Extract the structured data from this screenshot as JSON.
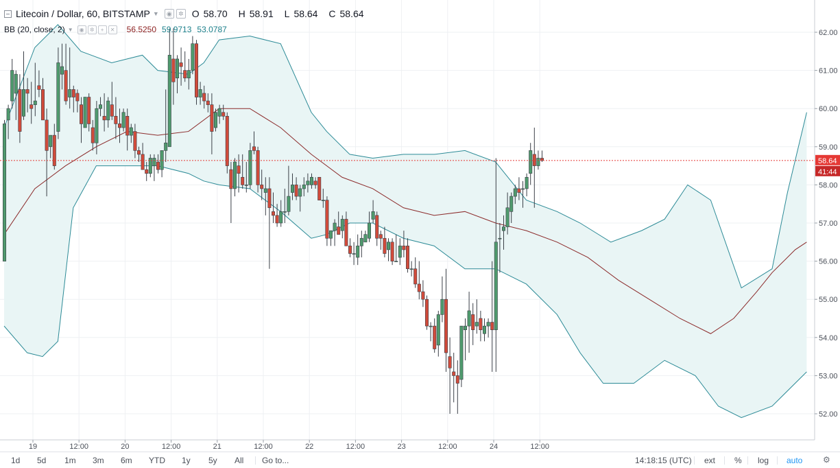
{
  "header": {
    "symbol": "Litecoin / Dollar, 60, BITSTAMP",
    "o_label": "O",
    "o_value": "58.70",
    "h_label": "H",
    "h_value": "58.91",
    "l_label": "L",
    "l_value": "58.64",
    "c_label": "C",
    "c_value": "58.64"
  },
  "indicator": {
    "name": "BB (20, close, 2)",
    "basis": "56.5250",
    "upper": "59.9713",
    "lower": "53.0787"
  },
  "price_axis": {
    "labels": [
      "62.00",
      "61.00",
      "60.00",
      "59.00",
      "58.00",
      "57.00",
      "56.00",
      "55.00",
      "54.00",
      "53.00",
      "52.00"
    ],
    "last_price": "58.64",
    "countdown": "41:44"
  },
  "time_axis": {
    "labels": [
      {
        "text": "19",
        "t": 7.5
      },
      {
        "text": "12:00",
        "t": 19.5
      },
      {
        "text": "20",
        "t": 31.5
      },
      {
        "text": "12:00",
        "t": 43.5
      },
      {
        "text": "21",
        "t": 55.5
      },
      {
        "text": "12:00",
        "t": 67.5
      },
      {
        "text": "22",
        "t": 79.5
      },
      {
        "text": "12:00",
        "t": 91.5
      },
      {
        "text": "23",
        "t": 103.5
      },
      {
        "text": "12:00",
        "t": 115.5
      },
      {
        "text": "24",
        "t": 127.5
      },
      {
        "text": "12:00",
        "t": 139.5
      }
    ]
  },
  "toolbar": {
    "ranges": [
      "1d",
      "5d",
      "1m",
      "3m",
      "6m",
      "YTD",
      "1y",
      "5y",
      "All"
    ],
    "goto": "Go to...",
    "time": "14:18:15 (UTC)",
    "ext": "ext",
    "percent": "%",
    "log": "log",
    "auto": "auto"
  },
  "colors": {
    "up": "#4f9a6d",
    "down": "#d14b3b",
    "band": "#2b8a96",
    "basis": "#8b2a2a",
    "band_fill": "#e9f5f5",
    "last_price_tag": "#e53935",
    "countdown_tag": "#c62828",
    "grid": "#eef0f3"
  },
  "chart_data": {
    "type": "candlestick",
    "ylim": [
      51.6,
      62.3
    ],
    "ohlc": [
      [
        56.0,
        59.7,
        56.0,
        59.6
      ],
      [
        59.7,
        60.1,
        59.2,
        60.0
      ],
      [
        60.2,
        61.3,
        60.0,
        61.0
      ],
      [
        60.4,
        61.0,
        59.7,
        60.9
      ],
      [
        60.5,
        60.9,
        59.1,
        59.4
      ],
      [
        59.8,
        61.5,
        59.7,
        60.5
      ],
      [
        60.5,
        60.8,
        59.9,
        60.4
      ],
      [
        60.1,
        60.7,
        59.6,
        60.0
      ],
      [
        60.1,
        61.2,
        59.8,
        60.2
      ],
      [
        60.6,
        61.0,
        60.3,
        60.5
      ],
      [
        60.5,
        60.8,
        59.7,
        59.7
      ],
      [
        59.7,
        60.0,
        57.7,
        58.9
      ],
      [
        59.0,
        59.3,
        58.7,
        59.3
      ],
      [
        59.3,
        59.6,
        58.4,
        58.5
      ],
      [
        59.4,
        61.6,
        59.2,
        61.2
      ],
      [
        60.9,
        61.7,
        60.5,
        61.1
      ],
      [
        61.0,
        61.7,
        60.1,
        60.2
      ],
      [
        60.3,
        61.6,
        60.0,
        60.5
      ],
      [
        60.5,
        60.6,
        59.9,
        60.3
      ],
      [
        60.4,
        60.5,
        59.9,
        60.2
      ],
      [
        60.1,
        60.3,
        59.1,
        59.6
      ],
      [
        59.5,
        60.3,
        59.5,
        60.3
      ],
      [
        60.3,
        60.4,
        59.4,
        59.6
      ],
      [
        59.5,
        59.7,
        58.9,
        59.1
      ],
      [
        59.1,
        60.2,
        58.8,
        60.0
      ],
      [
        60.0,
        60.3,
        59.8,
        60.1
      ],
      [
        59.8,
        60.4,
        59.4,
        59.7
      ],
      [
        59.7,
        60.3,
        59.5,
        60.2
      ],
      [
        60.1,
        60.7,
        59.7,
        59.8
      ],
      [
        59.8,
        60.3,
        59.2,
        59.6
      ],
      [
        59.6,
        60.0,
        59.1,
        59.5
      ],
      [
        59.5,
        60.0,
        59.4,
        59.9
      ],
      [
        59.8,
        60.0,
        58.9,
        59.3
      ],
      [
        59.3,
        59.6,
        59.1,
        59.5
      ],
      [
        59.4,
        59.6,
        58.7,
        58.9
      ],
      [
        58.9,
        59.0,
        58.6,
        58.8
      ],
      [
        58.8,
        59.1,
        58.4,
        58.4
      ],
      [
        58.4,
        58.6,
        58.1,
        58.3
      ],
      [
        58.3,
        58.8,
        58.2,
        58.7
      ],
      [
        58.5,
        58.8,
        58.1,
        58.7
      ],
      [
        58.6,
        58.8,
        58.3,
        58.4
      ],
      [
        58.4,
        58.9,
        58.2,
        58.9
      ],
      [
        58.9,
        60.5,
        58.6,
        59.1
      ],
      [
        59.0,
        62.1,
        59.0,
        61.4
      ],
      [
        61.3,
        62.1,
        60.1,
        60.7
      ],
      [
        60.8,
        61.4,
        60.4,
        61.3
      ],
      [
        61.2,
        61.6,
        60.6,
        61.1
      ],
      [
        61.0,
        61.5,
        60.7,
        60.8
      ],
      [
        60.8,
        61.3,
        60.5,
        61.0
      ],
      [
        61.0,
        61.9,
        60.9,
        61.7
      ],
      [
        61.7,
        61.8,
        60.1,
        60.3
      ],
      [
        60.3,
        60.7,
        60.1,
        60.5
      ],
      [
        60.4,
        60.6,
        60.0,
        60.2
      ],
      [
        60.2,
        60.4,
        59.9,
        60.1
      ],
      [
        60.1,
        60.4,
        58.8,
        59.4
      ],
      [
        59.5,
        60.0,
        59.4,
        59.9
      ],
      [
        59.8,
        60.1,
        59.6,
        60.0
      ],
      [
        59.9,
        60.1,
        59.7,
        59.8
      ],
      [
        59.8,
        59.9,
        58.3,
        58.5
      ],
      [
        58.4,
        58.6,
        57.0,
        57.9
      ],
      [
        57.9,
        58.7,
        57.7,
        58.6
      ],
      [
        58.5,
        58.8,
        57.8,
        58.3
      ],
      [
        58.2,
        58.8,
        57.9,
        58.0
      ],
      [
        58.0,
        58.6,
        57.8,
        58.0
      ],
      [
        58.0,
        59.1,
        57.9,
        58.9
      ],
      [
        59.0,
        59.4,
        58.8,
        58.9
      ],
      [
        58.9,
        59.0,
        57.8,
        58.0
      ],
      [
        58.0,
        58.4,
        57.6,
        57.9
      ],
      [
        57.8,
        58.2,
        57.2,
        57.9
      ],
      [
        57.9,
        58.2,
        55.8,
        57.4
      ],
      [
        57.3,
        57.8,
        57.0,
        57.2
      ],
      [
        57.2,
        57.5,
        56.9,
        57.0
      ],
      [
        57.0,
        57.6,
        56.9,
        57.3
      ],
      [
        57.3,
        57.9,
        57.0,
        57.3
      ],
      [
        57.3,
        58.5,
        57.2,
        57.7
      ],
      [
        57.8,
        58.3,
        57.6,
        58.0
      ],
      [
        58.0,
        58.2,
        57.6,
        57.7
      ],
      [
        57.7,
        58.0,
        57.3,
        57.9
      ],
      [
        57.9,
        58.2,
        57.7,
        58.0
      ],
      [
        58.0,
        58.3,
        57.8,
        58.1
      ],
      [
        58.0,
        58.3,
        57.9,
        58.2
      ],
      [
        58.1,
        58.2,
        57.9,
        58.0
      ],
      [
        58.2,
        58.2,
        57.6,
        57.6
      ],
      [
        57.6,
        57.9,
        57.4,
        57.6
      ],
      [
        57.6,
        57.7,
        56.4,
        56.6
      ],
      [
        56.6,
        56.8,
        56.4,
        56.8
      ],
      [
        56.8,
        57.1,
        56.4,
        57.0
      ],
      [
        56.9,
        57.3,
        56.7,
        56.7
      ],
      [
        56.8,
        57.2,
        56.6,
        57.1
      ],
      [
        57.1,
        57.3,
        56.5,
        56.4
      ],
      [
        56.4,
        56.6,
        56.1,
        56.2
      ],
      [
        56.2,
        56.5,
        55.9,
        56.2
      ],
      [
        56.1,
        56.7,
        55.9,
        56.4
      ],
      [
        56.4,
        56.8,
        56.1,
        56.6
      ],
      [
        56.5,
        56.8,
        56.5,
        56.7
      ],
      [
        56.6,
        57.3,
        56.5,
        57.0
      ],
      [
        57.1,
        57.6,
        57.0,
        57.3
      ],
      [
        57.2,
        57.3,
        56.4,
        56.6
      ],
      [
        56.7,
        56.8,
        56.3,
        56.6
      ],
      [
        56.6,
        56.9,
        56.1,
        56.2
      ],
      [
        56.3,
        56.6,
        56.0,
        56.5
      ],
      [
        56.5,
        56.6,
        55.9,
        56.0
      ],
      [
        56.0,
        56.7,
        56.0,
        56.0
      ],
      [
        56.1,
        56.6,
        55.9,
        56.4
      ],
      [
        56.4,
        56.8,
        56.1,
        56.3
      ],
      [
        56.4,
        56.6,
        55.7,
        55.8
      ],
      [
        55.8,
        56.0,
        55.6,
        55.8
      ],
      [
        55.8,
        56.1,
        55.3,
        55.4
      ],
      [
        55.4,
        56.0,
        55.0,
        55.2
      ],
      [
        55.2,
        55.5,
        54.8,
        55.0
      ],
      [
        55.0,
        55.1,
        54.2,
        54.3
      ],
      [
        54.3,
        54.4,
        53.9,
        54.3
      ],
      [
        54.3,
        54.5,
        53.6,
        53.7
      ],
      [
        53.8,
        54.7,
        53.5,
        54.6
      ],
      [
        54.6,
        55.6,
        54.4,
        55.0
      ],
      [
        55.0,
        55.8,
        53.1,
        53.6
      ],
      [
        53.5,
        54.0,
        52.0,
        53.2
      ],
      [
        53.1,
        53.6,
        52.3,
        53.0
      ],
      [
        53.0,
        53.4,
        52.0,
        52.8
      ],
      [
        52.9,
        54.3,
        52.7,
        54.3
      ],
      [
        54.2,
        54.5,
        53.4,
        54.3
      ],
      [
        54.3,
        55.2,
        53.6,
        54.7
      ],
      [
        54.6,
        54.9,
        53.8,
        54.2
      ],
      [
        54.3,
        55.0,
        54.1,
        54.4
      ],
      [
        54.5,
        54.7,
        53.9,
        54.2
      ],
      [
        54.1,
        54.5,
        53.9,
        54.3
      ],
      [
        54.3,
        54.5,
        54.0,
        54.4
      ],
      [
        54.4,
        56.0,
        53.1,
        54.2
      ],
      [
        54.2,
        58.7,
        53.1,
        56.5
      ],
      [
        56.6,
        57.0,
        55.7,
        56.6
      ],
      [
        56.8,
        57.2,
        56.3,
        56.9
      ],
      [
        56.9,
        57.8,
        56.7,
        57.4
      ],
      [
        57.3,
        57.8,
        57.0,
        57.7
      ],
      [
        57.7,
        58.0,
        57.5,
        57.9
      ],
      [
        57.9,
        58.2,
        57.6,
        57.8
      ],
      [
        57.9,
        58.1,
        57.4,
        57.9
      ],
      [
        57.9,
        58.3,
        57.7,
        58.2
      ],
      [
        58.3,
        59.1,
        58.0,
        58.9
      ],
      [
        58.8,
        59.5,
        57.4,
        58.5
      ],
      [
        58.5,
        58.9,
        58.4,
        58.7
      ],
      [
        58.7,
        58.9,
        58.6,
        58.64
      ]
    ],
    "bb_basis": [
      [
        0,
        56.7
      ],
      [
        8,
        57.9
      ],
      [
        16,
        58.5
      ],
      [
        24,
        59.0
      ],
      [
        32,
        59.4
      ],
      [
        40,
        59.3
      ],
      [
        48,
        59.4
      ],
      [
        56,
        60.0
      ],
      [
        64,
        60.0
      ],
      [
        72,
        59.5
      ],
      [
        80,
        58.8
      ],
      [
        88,
        58.2
      ],
      [
        96,
        57.9
      ],
      [
        104,
        57.4
      ],
      [
        112,
        57.2
      ],
      [
        120,
        57.3
      ],
      [
        128,
        57.0
      ],
      [
        136,
        56.8
      ],
      [
        144,
        56.5
      ],
      [
        152,
        56.1
      ],
      [
        160,
        55.5
      ],
      [
        168,
        55.0
      ],
      [
        176,
        54.5
      ],
      [
        184,
        54.1
      ],
      [
        190,
        54.5
      ],
      [
        196,
        55.2
      ],
      [
        200,
        55.7
      ],
      [
        206,
        56.3
      ],
      [
        209,
        56.5
      ]
    ],
    "bb_upper": [
      [
        0,
        59.5
      ],
      [
        8,
        61.6
      ],
      [
        14,
        62.2
      ],
      [
        20,
        61.5
      ],
      [
        28,
        61.2
      ],
      [
        36,
        61.4
      ],
      [
        40,
        61.0
      ],
      [
        48,
        60.9
      ],
      [
        52,
        61.2
      ],
      [
        56,
        61.8
      ],
      [
        64,
        61.9
      ],
      [
        72,
        61.7
      ],
      [
        80,
        59.9
      ],
      [
        84,
        59.4
      ],
      [
        90,
        58.8
      ],
      [
        96,
        58.7
      ],
      [
        104,
        58.8
      ],
      [
        112,
        58.8
      ],
      [
        120,
        58.9
      ],
      [
        128,
        58.6
      ],
      [
        136,
        57.6
      ],
      [
        144,
        57.3
      ],
      [
        150,
        57.0
      ],
      [
        158,
        56.5
      ],
      [
        166,
        56.8
      ],
      [
        172,
        57.1
      ],
      [
        178,
        58.0
      ],
      [
        184,
        57.6
      ],
      [
        192,
        55.3
      ],
      [
        200,
        55.8
      ],
      [
        204,
        57.8
      ],
      [
        209,
        59.9
      ]
    ],
    "bb_lower": [
      [
        0,
        54.3
      ],
      [
        6,
        53.6
      ],
      [
        10,
        53.5
      ],
      [
        14,
        53.9
      ],
      [
        18,
        57.4
      ],
      [
        24,
        58.5
      ],
      [
        32,
        58.5
      ],
      [
        40,
        58.5
      ],
      [
        48,
        58.3
      ],
      [
        52,
        58.1
      ],
      [
        56,
        58.0
      ],
      [
        64,
        57.9
      ],
      [
        72,
        57.3
      ],
      [
        80,
        56.6
      ],
      [
        84,
        56.7
      ],
      [
        90,
        57.0
      ],
      [
        96,
        57.0
      ],
      [
        104,
        56.6
      ],
      [
        112,
        56.4
      ],
      [
        120,
        55.8
      ],
      [
        128,
        55.8
      ],
      [
        136,
        55.4
      ],
      [
        144,
        54.6
      ],
      [
        150,
        53.6
      ],
      [
        156,
        52.8
      ],
      [
        164,
        52.8
      ],
      [
        172,
        53.4
      ],
      [
        180,
        53.0
      ],
      [
        186,
        52.2
      ],
      [
        192,
        51.9
      ],
      [
        200,
        52.2
      ],
      [
        209,
        53.1
      ]
    ]
  }
}
